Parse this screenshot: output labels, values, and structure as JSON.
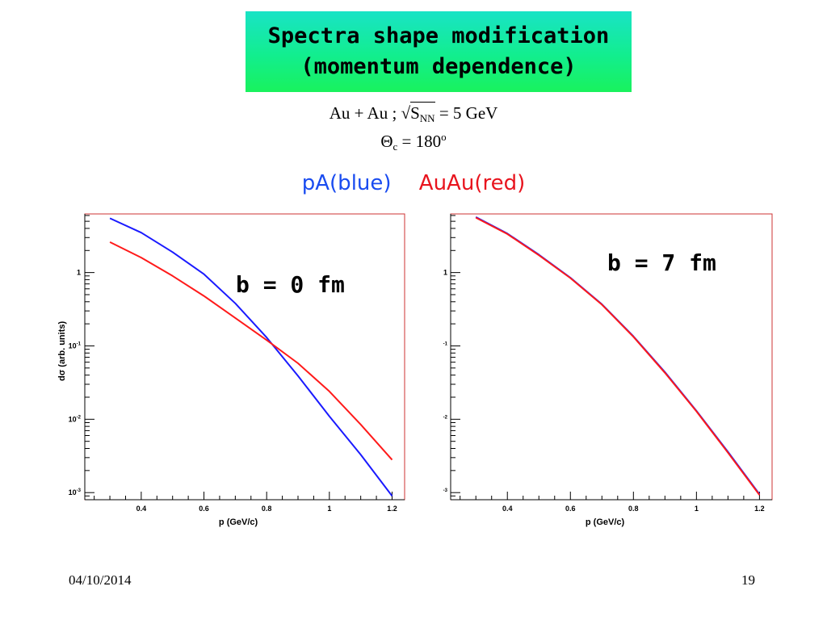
{
  "slide": {
    "title_line1": "Spectra shape modification",
    "title_line2": "(momentum dependence)",
    "formula": {
      "au": "Au",
      "plus": "+",
      "au2": "Au",
      "sep": ";",
      "sqrt_sign": "√",
      "s": "S",
      "s_sub": "NN",
      "equals": "=",
      "energy": "5 GeV",
      "theta": "Θ",
      "theta_sub": "c",
      "angle": "180",
      "angle_sup": "o"
    },
    "legend": {
      "pa": "pA(blue)",
      "auau": "AuAu(red)"
    },
    "footer_date": "04/10/2014",
    "footer_page": "19"
  },
  "colors": {
    "pa": "#1a1aff",
    "auau": "#ff1a1a",
    "frame": "#cc3333",
    "title_bg": "#19ee8e"
  },
  "chart_data": [
    {
      "type": "line",
      "annotation": "b = 0 fm",
      "xlabel": "p (GeV/c)",
      "ylabel": "dσ (arb. units)",
      "xlim": [
        0.22,
        1.24
      ],
      "ylim": [
        0.0008,
        6.3
      ],
      "yscale": "log",
      "xticks": [
        "0.4",
        "0.6",
        "0.8",
        "1",
        "1.2"
      ],
      "yticks": [
        {
          "base": "1",
          "exp": ""
        },
        {
          "base": "10",
          "exp": "-1"
        },
        {
          "base": "10",
          "exp": "-2"
        },
        {
          "base": "10",
          "exp": "-3"
        }
      ],
      "series": [
        {
          "name": "pA",
          "color_key": "pa",
          "x": [
            0.3,
            0.4,
            0.5,
            0.6,
            0.7,
            0.8,
            0.9,
            1.0,
            1.1,
            1.2
          ],
          "y": [
            5.5,
            3.5,
            1.9,
            0.95,
            0.38,
            0.13,
            0.039,
            0.011,
            0.0033,
            0.0009
          ]
        },
        {
          "name": "AuAu",
          "color_key": "auau",
          "x": [
            0.3,
            0.4,
            0.5,
            0.6,
            0.7,
            0.8,
            0.9,
            1.0,
            1.1,
            1.2
          ],
          "y": [
            2.6,
            1.6,
            0.9,
            0.48,
            0.24,
            0.12,
            0.058,
            0.024,
            0.0085,
            0.0028
          ]
        }
      ]
    },
    {
      "type": "line",
      "annotation": "b = 7 fm",
      "xlabel": "p (GeV/c)",
      "ylabel": "",
      "xlim": [
        0.22,
        1.24
      ],
      "ylim": [
        0.0008,
        6.3
      ],
      "yscale": "log",
      "xticks": [
        "0.4",
        "0.6",
        "0.8",
        "1",
        "1.2"
      ],
      "yticks": [
        {
          "base": "1",
          "exp": ""
        },
        {
          "base": "",
          "exp": "-1"
        },
        {
          "base": "",
          "exp": "-2"
        },
        {
          "base": "",
          "exp": "-3"
        }
      ],
      "series": [
        {
          "name": "pA",
          "color_key": "pa",
          "x": [
            0.3,
            0.4,
            0.5,
            0.6,
            0.7,
            0.8,
            0.9,
            1.0,
            1.1,
            1.2
          ],
          "y": [
            5.7,
            3.4,
            1.75,
            0.85,
            0.37,
            0.135,
            0.044,
            0.013,
            0.0036,
            0.00095
          ]
        },
        {
          "name": "AuAu",
          "color_key": "auau",
          "x": [
            0.3,
            0.4,
            0.5,
            0.6,
            0.7,
            0.8,
            0.9,
            1.0,
            1.1,
            1.2
          ],
          "y": [
            5.6,
            3.35,
            1.72,
            0.84,
            0.365,
            0.133,
            0.043,
            0.0128,
            0.0035,
            0.00093
          ]
        }
      ]
    }
  ]
}
